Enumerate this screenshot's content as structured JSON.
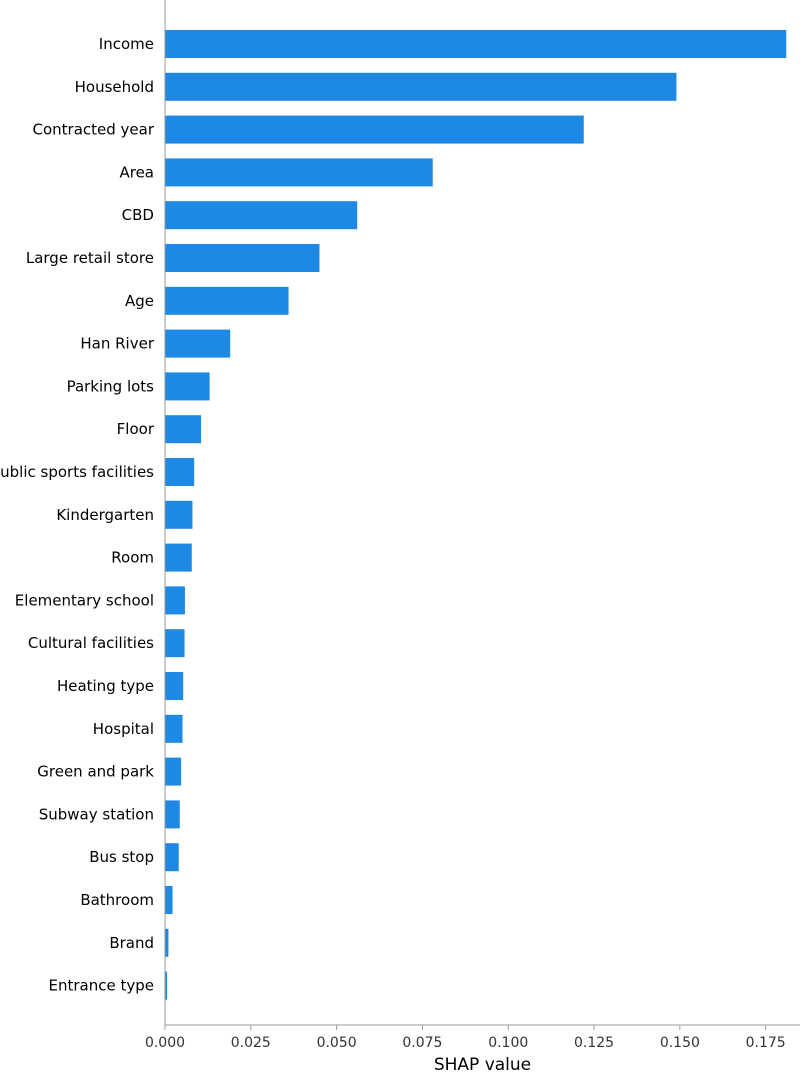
{
  "chart_data": {
    "type": "bar",
    "orientation": "horizontal",
    "title": "",
    "xlabel": "SHAP value",
    "ylabel": "",
    "xlim": [
      0,
      0.185
    ],
    "x_ticks": [
      0.0,
      0.025,
      0.05,
      0.075,
      0.1,
      0.125,
      0.15,
      0.175
    ],
    "x_tick_labels": [
      "0.000",
      "0.025",
      "0.050",
      "0.075",
      "0.100",
      "0.125",
      "0.150",
      "0.175"
    ],
    "grid": false,
    "bar_color": "#1E88E5",
    "categories": [
      "Income",
      "Household",
      "Contracted year",
      "Area",
      "CBD",
      "Large retail store",
      "Age",
      "Han River",
      "Parking lots",
      "Floor",
      "Public sports facilities",
      "Kindergarten",
      "Room",
      "Elementary school",
      "Cultural facilities",
      "Heating type",
      "Hospital",
      "Green and park",
      "Subway station",
      "Bus stop",
      "Bathroom",
      "Brand",
      "Entrance type"
    ],
    "values": [
      0.181,
      0.149,
      0.122,
      0.078,
      0.056,
      0.045,
      0.036,
      0.019,
      0.013,
      0.0105,
      0.0085,
      0.008,
      0.0078,
      0.0058,
      0.0057,
      0.0053,
      0.0051,
      0.0047,
      0.0043,
      0.004,
      0.0022,
      0.001,
      0.0006
    ]
  }
}
